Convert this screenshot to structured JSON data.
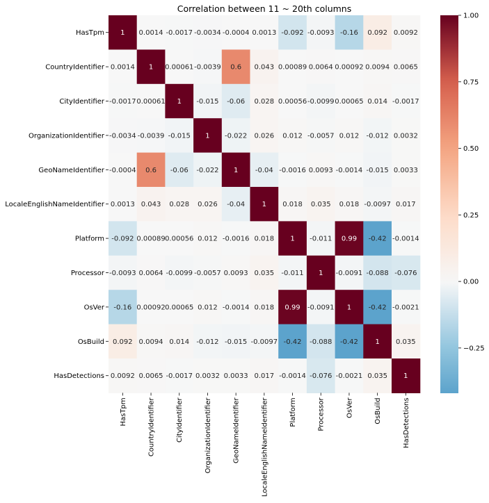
{
  "chart_data": {
    "type": "heatmap",
    "title": "Correlation between 11 ~ 20th columns",
    "xlabel": "",
    "ylabel": "",
    "labels": [
      "HasTpm",
      "CountryIdentifier",
      "CityIdentifier",
      "OrganizationIdentifier",
      "GeoNameIdentifier",
      "LocaleEnglishNameIdentifier",
      "Platform",
      "Processor",
      "OsVer",
      "OsBuild",
      "HasDetections"
    ],
    "matrix": [
      [
        1,
        0.0014,
        -0.0017,
        -0.0034,
        -0.0004,
        0.0013,
        -0.092,
        -0.0093,
        -0.16,
        0.092,
        0.0092
      ],
      [
        0.0014,
        1,
        0.00061,
        -0.0039,
        0.6,
        0.043,
        0.00089,
        0.0064,
        0.00092,
        0.0094,
        0.0065
      ],
      [
        -0.0017,
        0.00061,
        1,
        -0.015,
        -0.06,
        0.028,
        0.00056,
        -0.0099,
        0.00065,
        0.014,
        -0.0017
      ],
      [
        -0.0034,
        -0.0039,
        -0.015,
        1,
        -0.022,
        0.026,
        0.012,
        -0.0057,
        0.012,
        -0.012,
        0.0032
      ],
      [
        -0.0004,
        0.6,
        -0.06,
        -0.022,
        1,
        -0.04,
        -0.0016,
        0.0093,
        -0.0014,
        -0.015,
        0.0033
      ],
      [
        0.0013,
        0.043,
        0.028,
        0.026,
        -0.04,
        1,
        0.018,
        0.035,
        0.018,
        -0.0097,
        0.017
      ],
      [
        -0.092,
        0.00089,
        0.00056,
        0.012,
        -0.0016,
        0.018,
        1,
        -0.011,
        0.99,
        -0.42,
        -0.0014
      ],
      [
        -0.0093,
        0.0064,
        -0.0099,
        -0.0057,
        0.0093,
        0.035,
        -0.011,
        1,
        -0.0091,
        -0.088,
        -0.076
      ],
      [
        -0.16,
        0.00092,
        0.00065,
        0.012,
        -0.0014,
        0.018,
        0.99,
        -0.0091,
        1,
        -0.42,
        -0.0021
      ],
      [
        0.092,
        0.0094,
        0.014,
        -0.012,
        -0.015,
        -0.0097,
        -0.42,
        -0.088,
        -0.42,
        1,
        0.035
      ],
      [
        0.0092,
        0.0065,
        -0.0017,
        0.0032,
        0.0033,
        0.017,
        -0.0014,
        -0.076,
        -0.0021,
        0.035,
        1
      ]
    ],
    "colormap": "RdBu_r",
    "center": 0,
    "vmin": -0.42,
    "vmax": 1.0,
    "colorbar": {
      "ticks": [
        -0.25,
        0.0,
        0.25,
        0.5,
        0.75,
        1.0
      ],
      "tick_labels": [
        "−0.25",
        "0.00",
        "0.25",
        "0.50",
        "0.75",
        "1.00"
      ]
    },
    "grid": false,
    "legend": "colorbar-right"
  }
}
